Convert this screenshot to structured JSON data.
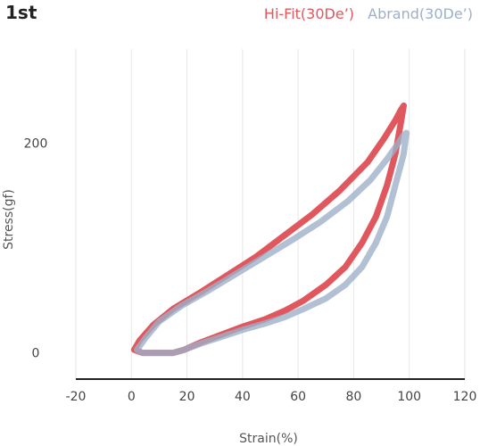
{
  "title": "1st",
  "legend": [
    {
      "label": "Hi-Fit(30De’)",
      "color": "#e0575d"
    },
    {
      "label": "Abrand(30De’)",
      "color": "#9eb0c8"
    }
  ],
  "chart_data": {
    "type": "line",
    "title": "1st",
    "xlabel": "Strain(%)",
    "ylabel": "Stress(gf)",
    "xlim": [
      -20,
      120
    ],
    "ylim": [
      -25,
      290
    ],
    "xticks": [
      -20,
      0,
      20,
      40,
      60,
      80,
      100,
      120
    ],
    "yticks": [
      0,
      200
    ],
    "grid": "vertical",
    "legend_position": "top-right",
    "series": [
      {
        "name": "Hi-Fit(30De’)",
        "color": "#e0575d",
        "x": [
          1,
          3,
          8,
          15,
          25,
          35,
          45,
          55,
          65,
          75,
          85,
          91,
          95,
          97,
          98,
          97,
          95,
          92,
          88,
          83,
          77,
          70,
          62,
          55,
          48,
          40,
          32,
          25,
          19,
          15,
          12,
          8,
          4,
          1
        ],
        "y": [
          3,
          12,
          27,
          42,
          58,
          75,
          92,
          112,
          132,
          155,
          182,
          205,
          222,
          232,
          236,
          220,
          190,
          160,
          130,
          105,
          82,
          65,
          50,
          40,
          32,
          25,
          17,
          10,
          3,
          0,
          0,
          0,
          0,
          3
        ]
      },
      {
        "name": "Abrand(30De’)",
        "color": "#9eb0c8",
        "x": [
          2,
          5,
          10,
          18,
          28,
          38,
          48,
          58,
          68,
          78,
          86,
          92,
          96,
          98,
          99,
          98,
          95,
          92,
          88,
          83,
          77,
          70,
          62,
          55,
          48,
          40,
          32,
          25,
          19,
          15,
          12,
          8,
          4,
          2
        ],
        "y": [
          3,
          14,
          30,
          45,
          60,
          76,
          92,
          108,
          125,
          145,
          165,
          185,
          200,
          208,
          210,
          190,
          160,
          130,
          105,
          82,
          65,
          52,
          42,
          34,
          28,
          22,
          15,
          9,
          3,
          0,
          0,
          0,
          0,
          3
        ]
      }
    ]
  }
}
